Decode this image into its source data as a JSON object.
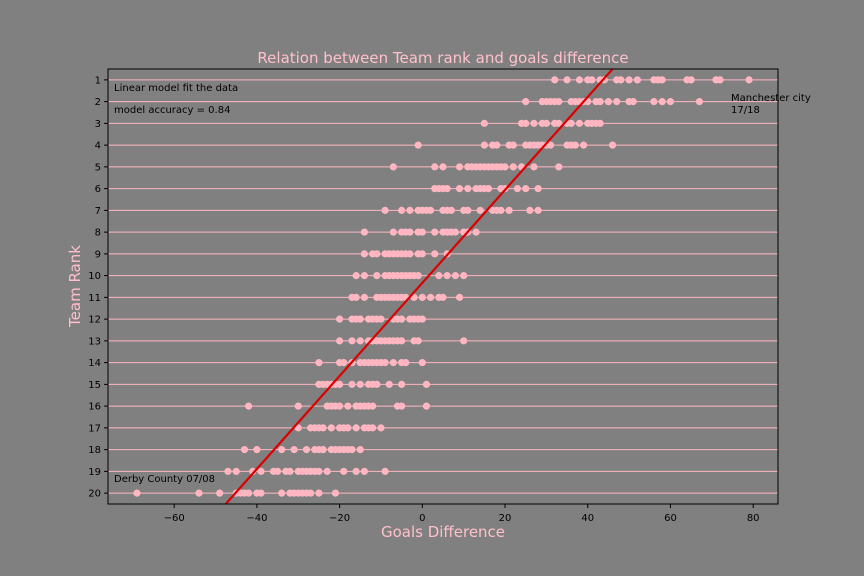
{
  "chart_data": {
    "type": "scatter",
    "title": "Relation between Team rank and goals difference",
    "xlabel": "Goals Difference",
    "ylabel": "Team Rank",
    "xlim": [
      -76,
      86
    ],
    "ylim": [
      20.5,
      0.5
    ],
    "x_ticks": [
      -60,
      -40,
      -20,
      0,
      20,
      40,
      60,
      80
    ],
    "x_tick_labels": [
      "−60",
      "−40",
      "−20",
      "0",
      "20",
      "40",
      "60",
      "80"
    ],
    "y_ticks": [
      1,
      2,
      3,
      4,
      5,
      6,
      7,
      8,
      9,
      10,
      11,
      12,
      13,
      14,
      15,
      16,
      17,
      18,
      19,
      20
    ],
    "grid": "horizontal",
    "colors": {
      "background": "#808080",
      "plot_area": "#808080",
      "points": "#ffb6c1",
      "gridlines": "#ffb6c1",
      "fit_line": "#dd0000",
      "title": "#ffc0cb",
      "axis_labels": "#ffc0cb"
    },
    "points_by_rank": [
      {
        "rank": 1,
        "x": [
          32,
          35,
          38,
          40,
          41,
          43,
          44,
          47,
          48,
          50,
          52,
          56,
          57,
          58,
          64,
          65,
          71,
          72,
          79
        ]
      },
      {
        "rank": 2,
        "x": [
          25,
          29,
          30,
          31,
          32,
          33,
          36,
          37,
          38,
          39,
          40,
          42,
          43,
          45,
          47,
          50,
          51,
          56,
          58,
          60,
          67
        ]
      },
      {
        "rank": 3,
        "x": [
          15,
          24,
          25,
          27,
          29,
          30,
          32,
          33,
          35,
          36,
          38,
          40,
          41,
          42,
          43
        ]
      },
      {
        "rank": 4,
        "x": [
          -1,
          15,
          17,
          18,
          21,
          22,
          25,
          26,
          27,
          28,
          29,
          30,
          31,
          35,
          36,
          37,
          39,
          46
        ]
      },
      {
        "rank": 5,
        "x": [
          -7,
          3,
          5,
          9,
          11,
          12,
          13,
          14,
          15,
          16,
          17,
          18,
          19,
          20,
          22,
          24,
          27,
          33
        ]
      },
      {
        "rank": 6,
        "x": [
          3,
          4,
          5,
          6,
          9,
          11,
          13,
          14,
          15,
          16,
          19,
          20,
          23,
          25,
          28
        ]
      },
      {
        "rank": 7,
        "x": [
          -9,
          -5,
          -3,
          -1,
          0,
          1,
          2,
          5,
          6,
          7,
          10,
          11,
          14,
          17,
          18,
          19,
          21,
          26,
          28
        ]
      },
      {
        "rank": 8,
        "x": [
          -14,
          -7,
          -5,
          -4,
          -3,
          -1,
          0,
          3,
          5,
          6,
          7,
          8,
          10,
          11,
          13
        ]
      },
      {
        "rank": 9,
        "x": [
          -14,
          -12,
          -11,
          -9,
          -8,
          -7,
          -6,
          -5,
          -4,
          -3,
          -1,
          0,
          3,
          6
        ]
      },
      {
        "rank": 10,
        "x": [
          -16,
          -14,
          -11,
          -9,
          -8,
          -7,
          -6,
          -5,
          -4,
          -3,
          -2,
          -1,
          4,
          6,
          8,
          10
        ]
      },
      {
        "rank": 11,
        "x": [
          -17,
          -16,
          -14,
          -11,
          -10,
          -9,
          -8,
          -7,
          -6,
          -5,
          -4,
          -2,
          0,
          2,
          4,
          5,
          9
        ]
      },
      {
        "rank": 12,
        "x": [
          -20,
          -17,
          -16,
          -15,
          -13,
          -12,
          -11,
          -10,
          -7,
          -6,
          -5,
          -3,
          -2,
          -1,
          0
        ]
      },
      {
        "rank": 13,
        "x": [
          -20,
          -17,
          -15,
          -13,
          -12,
          -11,
          -10,
          -9,
          -8,
          -7,
          -6,
          -5,
          -2,
          -1,
          10
        ]
      },
      {
        "rank": 14,
        "x": [
          -25,
          -20,
          -19,
          -17,
          -15,
          -14,
          -13,
          -12,
          -11,
          -10,
          -9,
          -7,
          -5,
          -4,
          0
        ]
      },
      {
        "rank": 15,
        "x": [
          -25,
          -24,
          -23,
          -22,
          -21,
          -20,
          -17,
          -15,
          -13,
          -12,
          -11,
          -8,
          -5,
          1
        ]
      },
      {
        "rank": 16,
        "x": [
          -42,
          -30,
          -23,
          -22,
          -21,
          -20,
          -18,
          -16,
          -15,
          -14,
          -13,
          -12,
          -6,
          -5,
          1
        ]
      },
      {
        "rank": 17,
        "x": [
          -30,
          -27,
          -26,
          -25,
          -24,
          -22,
          -20,
          -19,
          -18,
          -16,
          -14,
          -13,
          -12,
          -10
        ]
      },
      {
        "rank": 18,
        "x": [
          -43,
          -40,
          -34,
          -31,
          -28,
          -26,
          -25,
          -24,
          -22,
          -21,
          -20,
          -19,
          -18,
          -17,
          -15
        ]
      },
      {
        "rank": 19,
        "x": [
          -47,
          -45,
          -41,
          -39,
          -36,
          -35,
          -33,
          -32,
          -30,
          -29,
          -28,
          -27,
          -26,
          -25,
          -23,
          -19,
          -16,
          -14,
          -9
        ]
      },
      {
        "rank": 20,
        "x": [
          -69,
          -54,
          -49,
          -45,
          -44,
          -43,
          -42,
          -40,
          -39,
          -34,
          -32,
          -31,
          -30,
          -29,
          -28,
          -27,
          -25,
          -21
        ]
      }
    ],
    "fit_line": {
      "x": [
        -48,
        46
      ],
      "y": [
        20.6,
        0.5
      ]
    },
    "annotations": {
      "model_note": "Linear model fit the data",
      "accuracy": "model accuracy = 0.84",
      "top_team_line1": "Manchester city",
      "top_team_line2": "17/18",
      "bottom_team": "Derby County 07/08"
    }
  }
}
